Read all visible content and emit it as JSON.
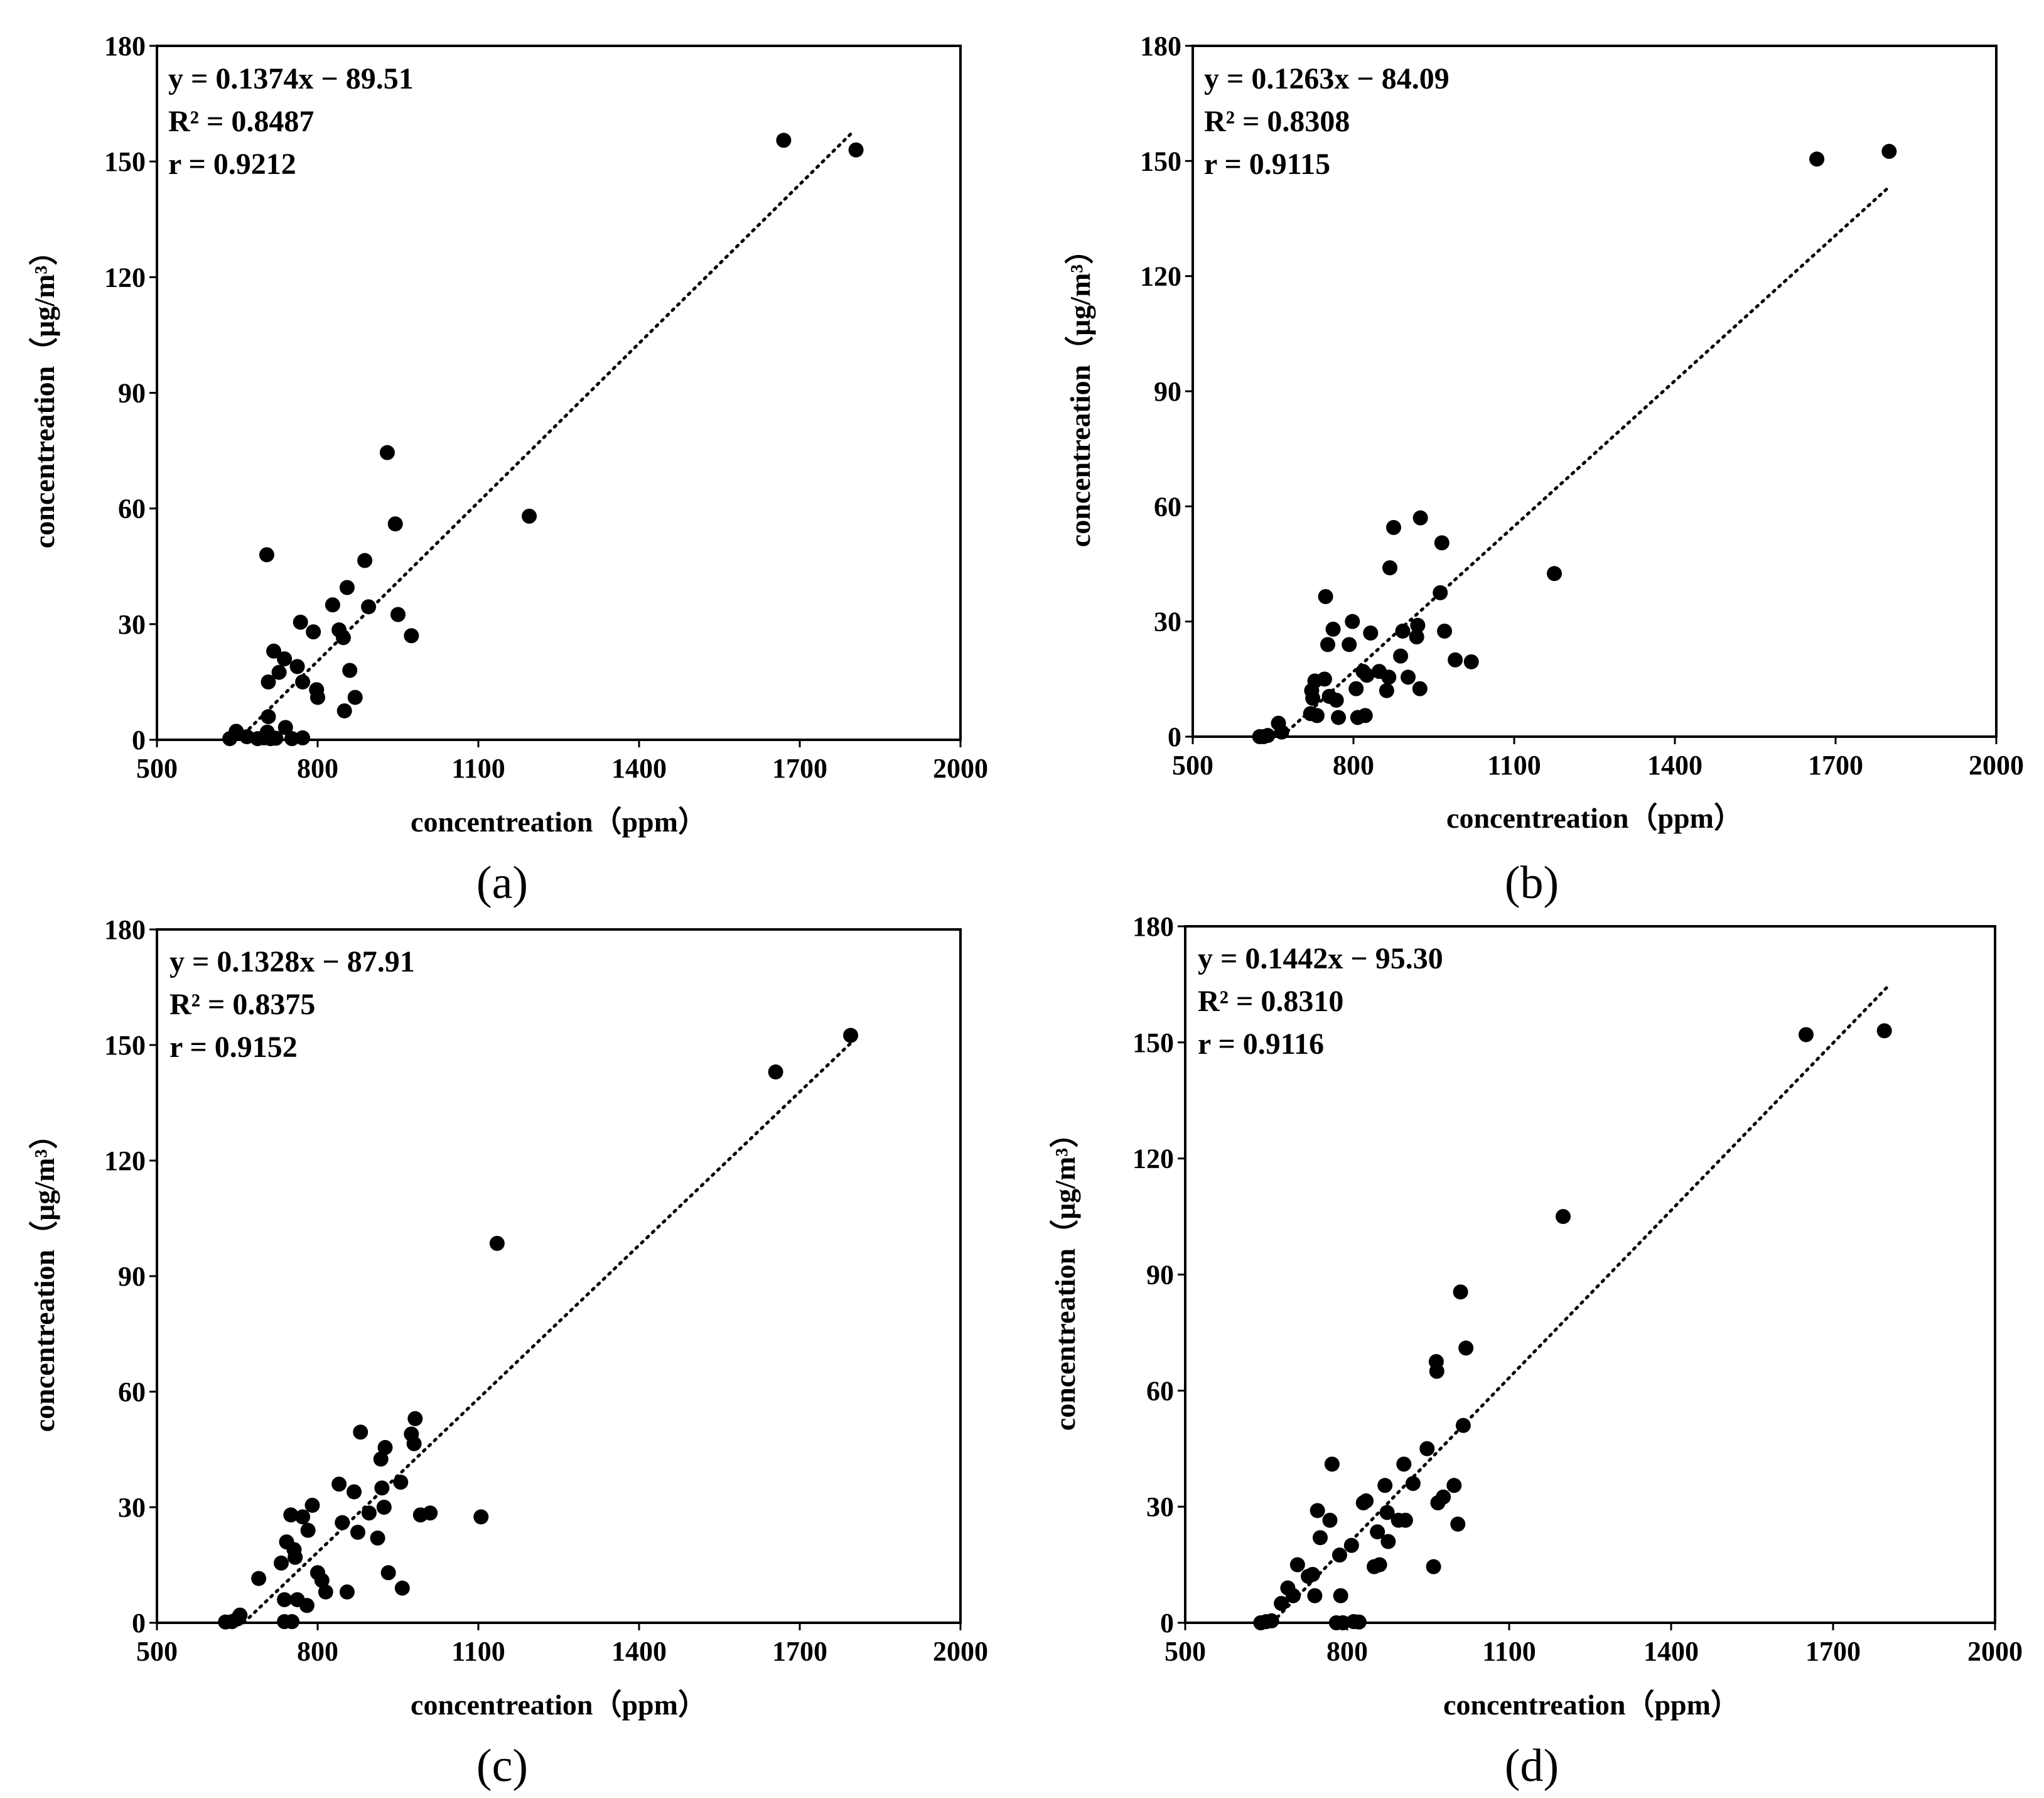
{
  "chart_data": [
    {
      "type": "scatter",
      "panel_label": "(a)",
      "xlabel": "concentreation（ppm）",
      "ylabel": "concentreation（μg/m³）",
      "xlim": [
        500,
        2000
      ],
      "ylim": [
        0,
        180
      ],
      "xticks": [
        500,
        800,
        1100,
        1400,
        1700,
        2000
      ],
      "yticks": [
        0,
        30,
        60,
        90,
        120,
        150,
        180
      ],
      "equation": "y = 0.1374x − 89.51",
      "r2": "R² = 0.8487",
      "r": "r = 0.9212",
      "trendline": {
        "slope": 0.1374,
        "intercept": -89.51,
        "x_range": [
          652,
          1800
        ]
      },
      "points": [
        [
          636,
          0.3
        ],
        [
          648,
          2.2
        ],
        [
          668,
          0.8
        ],
        [
          688,
          0.3
        ],
        [
          700,
          0.5
        ],
        [
          706,
          2
        ],
        [
          708,
          6
        ],
        [
          712,
          0.3
        ],
        [
          722,
          0.4
        ],
        [
          740,
          3.2
        ],
        [
          752,
          0.3
        ],
        [
          772,
          0.5
        ],
        [
          705,
          48
        ],
        [
          708,
          15
        ],
        [
          718,
          23
        ],
        [
          728,
          17.5
        ],
        [
          738,
          21
        ],
        [
          762,
          19
        ],
        [
          768,
          30.5
        ],
        [
          772,
          15
        ],
        [
          792,
          28
        ],
        [
          798,
          13
        ],
        [
          800,
          11
        ],
        [
          828,
          35
        ],
        [
          840,
          28.5
        ],
        [
          848,
          26.5
        ],
        [
          850,
          7.5
        ],
        [
          855,
          39.5
        ],
        [
          860,
          18
        ],
        [
          870,
          11
        ],
        [
          888,
          46.5
        ],
        [
          895,
          34.5
        ],
        [
          930,
          74.5
        ],
        [
          945,
          56
        ],
        [
          950,
          32.5
        ],
        [
          975,
          27
        ],
        [
          1195,
          58
        ],
        [
          1670,
          155.5
        ],
        [
          1805,
          153
        ]
      ]
    },
    {
      "type": "scatter",
      "panel_label": "(b)",
      "xlabel": "concentreation（ppm）",
      "ylabel": "concentreation（μg/m³）",
      "xlim": [
        500,
        2000
      ],
      "ylim": [
        0,
        180
      ],
      "xticks": [
        500,
        800,
        1100,
        1400,
        1700,
        2000
      ],
      "yticks": [
        0,
        30,
        60,
        90,
        120,
        150,
        180
      ],
      "equation": "y = 0.1263x − 84.09",
      "r2": "R² = 0.8308",
      "r": "r = 0.9115",
      "trendline": {
        "slope": 0.1263,
        "intercept": -84.09,
        "x_range": [
          666,
          1800
        ]
      },
      "points": [
        [
          625,
          0
        ],
        [
          632,
          0
        ],
        [
          640,
          0.3
        ],
        [
          660,
          3.5
        ],
        [
          666,
          1.2
        ],
        [
          720,
          6
        ],
        [
          722,
          12
        ],
        [
          724,
          10
        ],
        [
          728,
          14.5
        ],
        [
          732,
          5.5
        ],
        [
          746,
          15
        ],
        [
          748,
          36.5
        ],
        [
          752,
          24
        ],
        [
          755,
          10.5
        ],
        [
          762,
          28
        ],
        [
          768,
          9.5
        ],
        [
          772,
          5
        ],
        [
          792,
          24
        ],
        [
          798,
          30
        ],
        [
          805,
          12.5
        ],
        [
          808,
          5
        ],
        [
          818,
          17
        ],
        [
          822,
          5.5
        ],
        [
          825,
          16
        ],
        [
          832,
          27
        ],
        [
          848,
          17
        ],
        [
          862,
          12
        ],
        [
          866,
          15.5
        ],
        [
          868,
          44
        ],
        [
          875,
          54.5
        ],
        [
          888,
          21
        ],
        [
          892,
          27.5
        ],
        [
          902,
          15.5
        ],
        [
          918,
          26
        ],
        [
          920,
          29
        ],
        [
          924,
          12.5
        ],
        [
          925,
          57
        ],
        [
          962,
          37.5
        ],
        [
          965,
          50.5
        ],
        [
          970,
          27.5
        ],
        [
          990,
          20
        ],
        [
          1020,
          19.5
        ],
        [
          1175,
          42.5
        ],
        [
          1665,
          150.5
        ],
        [
          1800,
          152.5
        ]
      ]
    },
    {
      "type": "scatter",
      "panel_label": "(c)",
      "xlabel": "concentreation（ppm）",
      "ylabel": "concentreation（μg/m³）",
      "xlim": [
        500,
        2000
      ],
      "ylim": [
        0,
        180
      ],
      "xticks": [
        500,
        800,
        1100,
        1400,
        1700,
        2000
      ],
      "yticks": [
        0,
        30,
        60,
        90,
        120,
        150,
        180
      ],
      "equation": "y = 0.1328x − 87.91",
      "r2": "R² = 0.8375",
      "r": "r = 0.9152",
      "trendline": {
        "slope": 0.1328,
        "intercept": -87.91,
        "x_range": [
          662,
          1800
        ]
      },
      "points": [
        [
          628,
          0.2
        ],
        [
          640,
          0.3
        ],
        [
          650,
          1
        ],
        [
          655,
          2
        ],
        [
          690,
          11.5
        ],
        [
          732,
          15.5
        ],
        [
          738,
          6
        ],
        [
          738,
          0.3
        ],
        [
          742,
          21
        ],
        [
          750,
          28
        ],
        [
          752,
          0.3
        ],
        [
          756,
          19
        ],
        [
          758,
          17
        ],
        [
          762,
          6
        ],
        [
          772,
          27.5
        ],
        [
          780,
          4.5
        ],
        [
          782,
          24
        ],
        [
          790,
          30.5
        ],
        [
          800,
          13
        ],
        [
          808,
          11
        ],
        [
          815,
          8
        ],
        [
          840,
          36
        ],
        [
          846,
          26
        ],
        [
          855,
          8
        ],
        [
          868,
          34
        ],
        [
          875,
          23.5
        ],
        [
          880,
          49.5
        ],
        [
          896,
          28.5
        ],
        [
          912,
          22
        ],
        [
          918,
          42.5
        ],
        [
          920,
          35
        ],
        [
          924,
          30
        ],
        [
          926,
          45.5
        ],
        [
          932,
          13
        ],
        [
          955,
          36.5
        ],
        [
          958,
          9
        ],
        [
          975,
          49
        ],
        [
          980,
          46.5
        ],
        [
          982,
          53
        ],
        [
          992,
          28
        ],
        [
          1010,
          28.5
        ],
        [
          1105,
          27.5
        ],
        [
          1135,
          98.5
        ],
        [
          1655,
          143
        ],
        [
          1795,
          152.5
        ]
      ]
    },
    {
      "type": "scatter",
      "panel_label": "(d)",
      "xlabel": "concentreation（ppm）",
      "ylabel": "concentreation（μg/m³）",
      "xlim": [
        500,
        2000
      ],
      "ylim": [
        0,
        180
      ],
      "xticks": [
        500,
        800,
        1100,
        1400,
        1700,
        2000
      ],
      "yticks": [
        0,
        30,
        60,
        90,
        120,
        150,
        180
      ],
      "equation": "y = 0.1442x − 95.30",
      "r2": "R² = 0.8310",
      "r": "r = 0.9116",
      "trendline": {
        "slope": 0.1442,
        "intercept": -95.3,
        "x_range": [
          661,
          1800
        ]
      },
      "points": [
        [
          640,
          0
        ],
        [
          650,
          0.3
        ],
        [
          660,
          0.5
        ],
        [
          678,
          5
        ],
        [
          690,
          9
        ],
        [
          700,
          7
        ],
        [
          708,
          15
        ],
        [
          728,
          12
        ],
        [
          736,
          12.5
        ],
        [
          740,
          7
        ],
        [
          745,
          29
        ],
        [
          750,
          22
        ],
        [
          768,
          26.5
        ],
        [
          772,
          41
        ],
        [
          780,
          0
        ],
        [
          786,
          17.5
        ],
        [
          788,
          7
        ],
        [
          792,
          0
        ],
        [
          808,
          20
        ],
        [
          812,
          0.3
        ],
        [
          822,
          0.2
        ],
        [
          830,
          31
        ],
        [
          835,
          31.5
        ],
        [
          850,
          14.5
        ],
        [
          856,
          23.5
        ],
        [
          860,
          15
        ],
        [
          870,
          35.5
        ],
        [
          874,
          28.5
        ],
        [
          876,
          21
        ],
        [
          895,
          26.5
        ],
        [
          905,
          41
        ],
        [
          908,
          26.5
        ],
        [
          922,
          36
        ],
        [
          948,
          45
        ],
        [
          960,
          14.5
        ],
        [
          965,
          67.5
        ],
        [
          966,
          65
        ],
        [
          968,
          31
        ],
        [
          978,
          32.5
        ],
        [
          998,
          35.5
        ],
        [
          1005,
          25.5
        ],
        [
          1010,
          85.5
        ],
        [
          1015,
          51
        ],
        [
          1020,
          71
        ],
        [
          1200,
          105
        ],
        [
          1650,
          152
        ],
        [
          1795,
          153
        ]
      ]
    }
  ]
}
